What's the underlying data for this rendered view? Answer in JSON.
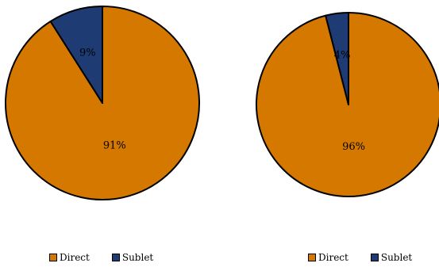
{
  "chart_data": [
    {
      "type": "pie",
      "categories": [
        "Direct",
        "Sublet"
      ],
      "values": [
        91,
        9
      ],
      "labels": [
        "91%",
        "9%"
      ],
      "colors": [
        "#D47800",
        "#1F3B73"
      ],
      "legend": "bottom"
    },
    {
      "type": "pie",
      "categories": [
        "Direct",
        "Sublet"
      ],
      "values": [
        96,
        4
      ],
      "labels": [
        "96%",
        "4%"
      ],
      "colors": [
        "#D47800",
        "#1F3B73"
      ],
      "legend": "bottom"
    }
  ]
}
